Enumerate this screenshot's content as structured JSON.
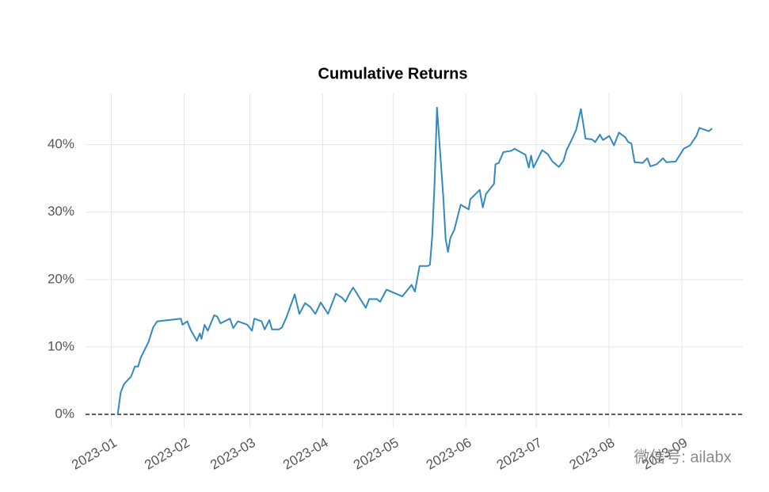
{
  "chart_data": {
    "type": "line",
    "title": "Cumulative Returns",
    "x": [
      2.7,
      4,
      5.4,
      8.4,
      10,
      11.4,
      12.5,
      15.8,
      17.8,
      19.5,
      29.6,
      30.3,
      32.3,
      33.7,
      36.4,
      37.7,
      38.4,
      39.7,
      41.1,
      43.8,
      45.1,
      46.5,
      50.5,
      51.9,
      53.9,
      57.9,
      59.9,
      60.9,
      64,
      65.3,
      67.3,
      68.4,
      71.4,
      72.7,
      74.7,
      78.1,
      80.1,
      82.5,
      84.8,
      86.9,
      89.2,
      92.3,
      95.6,
      98.3,
      99.7,
      101.7,
      103,
      108.4,
      109.8,
      113.1,
      114.5,
      117.2,
      123.9,
      127.9,
      129.3,
      131.3,
      134.7,
      135.7,
      136.7,
      137.7,
      138.7,
      141.4,
      142.4,
      143.4,
      144.4,
      146.1,
      148.8,
      152.2,
      152.9,
      156.9,
      158.2,
      159.6,
      163,
      163.6,
      165,
      167,
      170.4,
      171.7,
      176.4,
      177.8,
      178.8,
      179.8,
      183.5,
      185.9,
      187.9,
      190.6,
      192.6,
      193.9,
      195.9,
      198,
      200,
      202,
      204.7,
      206.1,
      208.1,
      209.4,
      212.1,
      214.1,
      216.2,
      218.9,
      220.2,
      221.5,
      222.9,
      226.3,
      228.3,
      229.6,
      232.3,
      235,
      236.4,
      240.4,
      243.8,
      246.5,
      249.2,
      250.5,
      254.5,
      255.9
    ],
    "series": [
      {
        "color": "#348abd",
        "values": [
          0,
          3.3,
          4.5,
          5.6,
          7.1,
          7.1,
          8.4,
          10.7,
          12.9,
          13.8,
          14.2,
          13.3,
          13.8,
          12.6,
          10.9,
          12.0,
          11.2,
          13.3,
          12.4,
          14.7,
          14.5,
          13.5,
          14.2,
          12.8,
          13.8,
          13.3,
          12.4,
          14.2,
          13.8,
          12.6,
          14,
          12.6,
          12.6,
          12.9,
          14.5,
          17.8,
          14.9,
          16.5,
          15.9,
          14.9,
          16.6,
          14.9,
          17.9,
          17.3,
          16.7,
          18.1,
          18.8,
          15.8,
          17.1,
          17.1,
          16.7,
          18.5,
          17.5,
          19.2,
          18.2,
          22,
          22,
          22.2,
          26.5,
          34.5,
          45.5,
          32.1,
          26,
          24.1,
          26.2,
          27.4,
          31.1,
          30.4,
          31.9,
          33.3,
          30.7,
          32.7,
          34.2,
          37.1,
          37.3,
          38.9,
          39.1,
          39.4,
          38.5,
          36.6,
          38.4,
          36.6,
          39.2,
          38.6,
          37.5,
          36.7,
          37.6,
          39.2,
          40.6,
          42.2,
          45.3,
          40.9,
          40.8,
          40.4,
          41.5,
          40.7,
          41.3,
          39.9,
          41.8,
          41.1,
          40.4,
          40.2,
          37.4,
          37.3,
          38,
          36.8,
          37.1,
          38,
          37.4,
          37.5,
          39.4,
          39.9,
          41.3,
          42.5,
          42,
          42.4
        ]
      }
    ],
    "xlim": [
      -11,
      269
    ],
    "xticks": [
      {
        "value": 0,
        "label": "2023-01"
      },
      {
        "value": 31,
        "label": "2023-02"
      },
      {
        "value": 59,
        "label": "2023-03"
      },
      {
        "value": 90,
        "label": "2023-04"
      },
      {
        "value": 120,
        "label": "2023-05"
      },
      {
        "value": 151,
        "label": "2023-06"
      },
      {
        "value": 181,
        "label": "2023-07"
      },
      {
        "value": 212,
        "label": "2023-08"
      },
      {
        "value": 243,
        "label": "2023-09"
      }
    ],
    "ylim": [
      -2,
      47.6
    ],
    "yticks": [
      {
        "value": 0,
        "label": "0%"
      },
      {
        "value": 10,
        "label": "10%"
      },
      {
        "value": 20,
        "label": "20%"
      },
      {
        "value": 30,
        "label": "30%"
      },
      {
        "value": 40,
        "label": "40%"
      }
    ],
    "grid": true,
    "zero_line": true,
    "watermark": "微信号: ailabx"
  }
}
